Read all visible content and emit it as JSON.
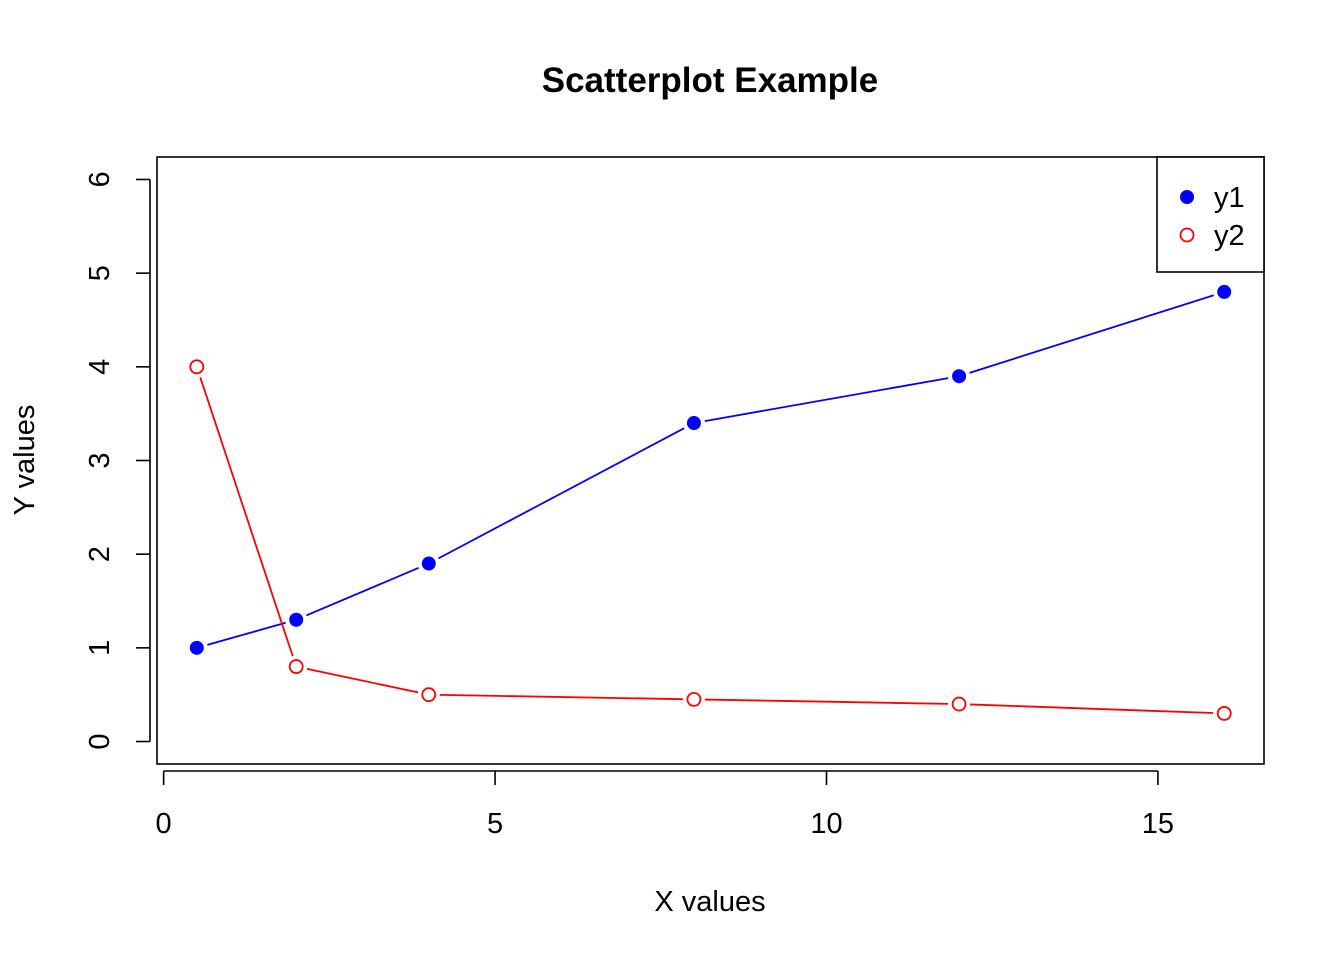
{
  "chart_data": {
    "type": "scatter",
    "title": "Scatterplot Example",
    "xlabel": "X values",
    "ylabel": "Y values",
    "x": [
      0.5,
      2,
      4,
      8,
      12,
      16
    ],
    "xlim": [
      -0.1,
      16.6
    ],
    "ylim": [
      -0.24,
      6.24
    ],
    "xticks": [
      0,
      5,
      10,
      15
    ],
    "yticks": [
      0,
      1,
      2,
      3,
      4,
      5,
      6
    ],
    "grid": false,
    "legend_position": "top-right",
    "series": [
      {
        "name": "y1",
        "values": [
          1,
          1.3,
          1.9,
          3.4,
          3.9,
          4.8
        ],
        "color": "#0000ff",
        "marker": "filled-circle",
        "lines": true
      },
      {
        "name": "y2",
        "values": [
          4,
          0.8,
          0.5,
          0.45,
          0.4,
          0.3
        ],
        "color": "#ff0000",
        "marker": "open-circle",
        "lines": true
      }
    ]
  }
}
